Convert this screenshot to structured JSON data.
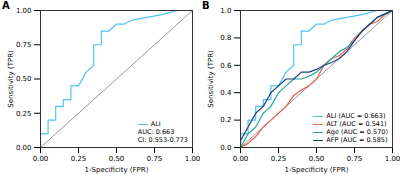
{
  "chart_data": [
    {
      "type": "line",
      "title": "A",
      "x_label": "1-Specificity (FPR)",
      "y_label": "Sensitivity (TPR)",
      "xlim": [
        0,
        1
      ],
      "ylim": [
        0,
        1
      ],
      "xticks": [
        {
          "value": 0,
          "label": "0.00"
        },
        {
          "value": 0.25,
          "label": "0.25"
        },
        {
          "value": 0.5,
          "label": "0.50"
        },
        {
          "value": 0.75,
          "label": "0.75"
        },
        {
          "value": 1,
          "label": "1.00"
        }
      ],
      "yticks": [
        {
          "value": 0,
          "label": "0.00"
        },
        {
          "value": 0.25,
          "label": "0.25"
        },
        {
          "value": 0.5,
          "label": "0.50"
        },
        {
          "value": 0.75,
          "label": "0.75"
        },
        {
          "value": 1,
          "label": "1.00"
        }
      ],
      "grid": false,
      "legend": "lower right",
      "annotations": [
        "AUC: 0.663",
        "CI: 0.553-0.773"
      ],
      "series": [
        {
          "name": "ALI",
          "color": "#4fc3f7",
          "x": [
            0,
            0,
            0.05,
            0.05,
            0.1,
            0.1,
            0.15,
            0.15,
            0.2,
            0.2,
            0.25,
            0.3,
            0.35,
            0.35,
            0.4,
            0.4,
            0.45,
            0.5,
            0.55,
            0.6,
            0.7,
            0.8,
            0.9,
            1
          ],
          "values": [
            0,
            0.1,
            0.1,
            0.2,
            0.2,
            0.3,
            0.3,
            0.35,
            0.35,
            0.45,
            0.45,
            0.55,
            0.6,
            0.75,
            0.75,
            0.85,
            0.85,
            0.9,
            0.9,
            0.93,
            0.95,
            0.97,
            1,
            1
          ]
        }
      ]
    },
    {
      "type": "line",
      "title": "B",
      "x_label": "1-Specificity (FPR)",
      "y_label": "Sensitivity (TPR)",
      "xlim": [
        0,
        1
      ],
      "ylim": [
        0,
        1
      ],
      "xticks": [
        {
          "value": 0,
          "label": "0.00"
        },
        {
          "value": 0.25,
          "label": "0.25"
        },
        {
          "value": 0.5,
          "label": "0.50"
        },
        {
          "value": 0.75,
          "label": "0.75"
        },
        {
          "value": 1,
          "label": "1.00"
        }
      ],
      "yticks": [
        {
          "value": 0,
          "label": "0.0"
        },
        {
          "value": 0.2,
          "label": "0.2"
        },
        {
          "value": 0.4,
          "label": "0.4"
        },
        {
          "value": 0.6,
          "label": "0.6"
        },
        {
          "value": 0.8,
          "label": "0.8"
        },
        {
          "value": 1,
          "label": "1.0"
        }
      ],
      "grid": false,
      "legend": "lower right",
      "series": [
        {
          "name": "ALI (AUC = 0.663)",
          "color": "#4fc3f7",
          "x": [
            0,
            0,
            0.05,
            0.05,
            0.1,
            0.1,
            0.15,
            0.15,
            0.2,
            0.2,
            0.25,
            0.3,
            0.35,
            0.35,
            0.4,
            0.4,
            0.45,
            0.5,
            0.55,
            0.6,
            0.7,
            0.8,
            0.9,
            1
          ],
          "values": [
            0,
            0.1,
            0.1,
            0.2,
            0.2,
            0.3,
            0.3,
            0.35,
            0.35,
            0.45,
            0.45,
            0.55,
            0.6,
            0.75,
            0.75,
            0.85,
            0.85,
            0.9,
            0.9,
            0.93,
            0.95,
            0.97,
            1,
            1
          ]
        },
        {
          "name": "ALT (AUC = 0.541)",
          "color": "#e8604c",
          "x": [
            0,
            0.05,
            0.1,
            0.15,
            0.2,
            0.25,
            0.3,
            0.35,
            0.4,
            0.45,
            0.5,
            0.55,
            0.6,
            0.65,
            0.7,
            0.75,
            0.8,
            0.85,
            0.9,
            0.95,
            1
          ],
          "values": [
            0,
            0.03,
            0.08,
            0.15,
            0.2,
            0.25,
            0.3,
            0.38,
            0.42,
            0.45,
            0.5,
            0.6,
            0.65,
            0.67,
            0.72,
            0.8,
            0.85,
            0.9,
            0.92,
            0.97,
            1
          ]
        },
        {
          "name": "Age (AUC = 0.570)",
          "color": "#26a69a",
          "x": [
            0,
            0.05,
            0.1,
            0.15,
            0.2,
            0.25,
            0.3,
            0.35,
            0.4,
            0.45,
            0.5,
            0.55,
            0.6,
            0.65,
            0.7,
            0.75,
            0.8,
            0.85,
            0.9,
            1
          ],
          "values": [
            0,
            0.1,
            0.15,
            0.25,
            0.3,
            0.4,
            0.45,
            0.5,
            0.5,
            0.52,
            0.55,
            0.6,
            0.65,
            0.7,
            0.73,
            0.78,
            0.85,
            0.9,
            0.95,
            1
          ]
        },
        {
          "name": "AFP (AUC = 0.585)",
          "color": "#1f3f7a",
          "x": [
            0,
            0,
            0.05,
            0.1,
            0.15,
            0.2,
            0.25,
            0.3,
            0.35,
            0.4,
            0.45,
            0.5,
            0.55,
            0.6,
            0.65,
            0.7,
            0.75,
            0.8,
            0.85,
            0.9,
            1
          ],
          "values": [
            0,
            0.05,
            0.15,
            0.25,
            0.3,
            0.4,
            0.45,
            0.5,
            0.5,
            0.55,
            0.55,
            0.57,
            0.6,
            0.62,
            0.65,
            0.7,
            0.78,
            0.85,
            0.9,
            0.95,
            1
          ]
        }
      ]
    }
  ]
}
